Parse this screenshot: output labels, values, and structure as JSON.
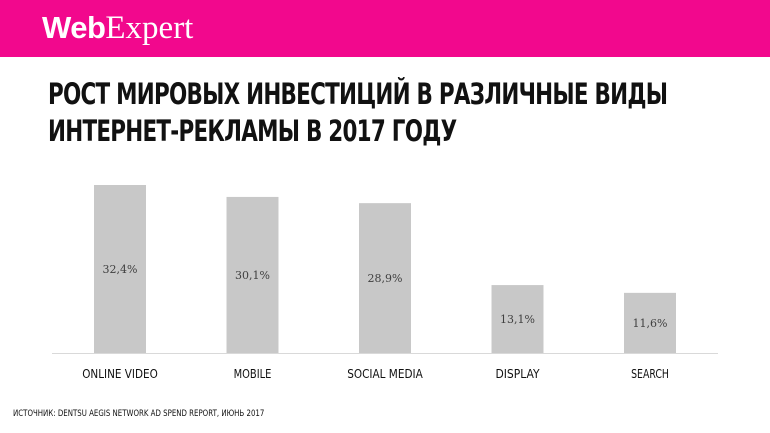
{
  "header": {
    "logo_web": "Web",
    "logo_expert": "Expert",
    "background": "#f2088d"
  },
  "title": "РОСТ МИРОВЫХ ИНВЕСТИЦИЙ В РАЗЛИЧНЫЕ ВИДЫ ИНТЕРНЕТ-РЕКЛАМЫ В 2017 ГОДУ",
  "source": "ИСТОЧНИК: DENTSU AEGIS NETWORK AD SPEND REPORT, ИЮНЬ 2017",
  "chart_data": {
    "type": "bar",
    "categories": [
      "ONLINE VIDEO",
      "MOBILE",
      "SOCIAL MEDIA",
      "DISPLAY",
      "SEARCH"
    ],
    "values": [
      32.4,
      30.1,
      28.9,
      13.1,
      11.6
    ],
    "data_labels": [
      "32,4%",
      "30,1%",
      "28,9%",
      "13,1%",
      "11,6%"
    ],
    "title": "",
    "xlabel": "",
    "ylabel": "",
    "ylim": [
      0,
      32.4
    ],
    "grid": false,
    "bar_color": "#c8c8c8",
    "baseline_color": "#d9d9d9"
  }
}
